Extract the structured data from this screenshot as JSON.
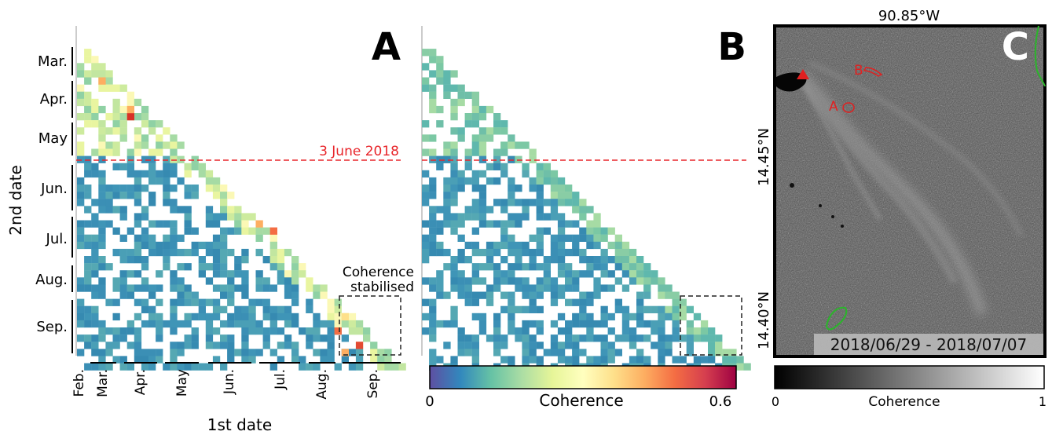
{
  "panels": {
    "a": {
      "letter": "A"
    },
    "b": {
      "letter": "B"
    },
    "c": {
      "letter": "C",
      "lon_label": "90.85°W",
      "lat_labels": [
        "14.45°N",
        "14.40°N"
      ],
      "date_range": "2018/06/29 - 2018/07/07",
      "markers": [
        "A",
        "B"
      ]
    }
  },
  "event_label": "3 June 2018",
  "annotation": {
    "line1": "Coherence",
    "line2": "stabilised"
  },
  "axes": {
    "y_label": "2nd date",
    "x_label": "1st date",
    "y_months": [
      "Mar.",
      "Apr.",
      "May",
      "Jun.",
      "Jul.",
      "Aug.",
      "Sep."
    ],
    "x_months": [
      "Feb.",
      "Mar.",
      "Apr.",
      "May",
      "Jun.",
      "Jul.",
      "Aug.",
      "Sep."
    ]
  },
  "colorbar_color": {
    "min": "0",
    "label": "Coherence",
    "max": "0.6"
  },
  "colorbar_gray": {
    "min": "0",
    "label": "Coherence",
    "max": "1"
  },
  "colors": {
    "red_line": "#e8262b",
    "blue": "#3b8fb5",
    "green": "#7bc8a4",
    "marker": "#e02020",
    "polygon": "#2bb52b"
  }
}
